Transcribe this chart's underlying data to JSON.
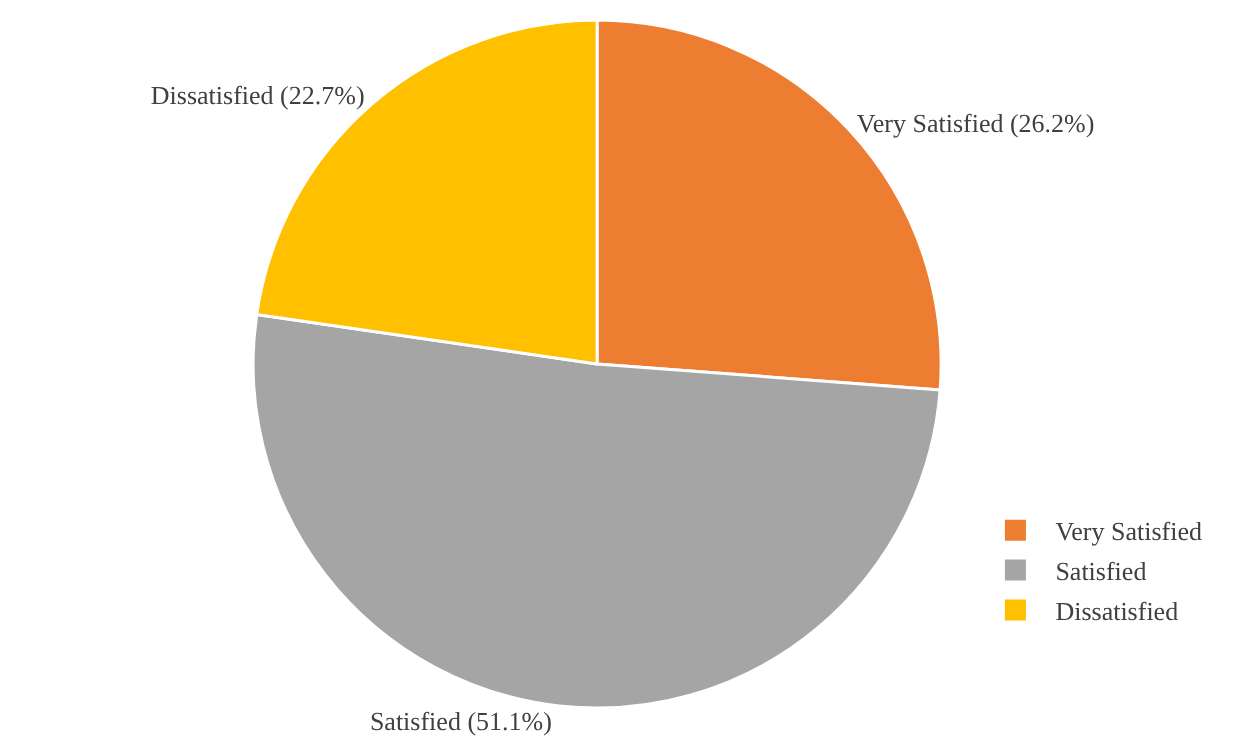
{
  "chart_data": {
    "type": "pie",
    "categories": [
      "Very Satisfied",
      "Satisfied",
      "Dissatisfied"
    ],
    "values": [
      26.2,
      51.1,
      22.7
    ],
    "colors": [
      "#ed7d31",
      "#a5a5a5",
      "#ffc000"
    ],
    "value_labels": [
      "Very Satisfied (26.2%)",
      "Satisfied (51.1%)",
      "Dissatisfied (22.7%)"
    ],
    "legend": "right"
  }
}
